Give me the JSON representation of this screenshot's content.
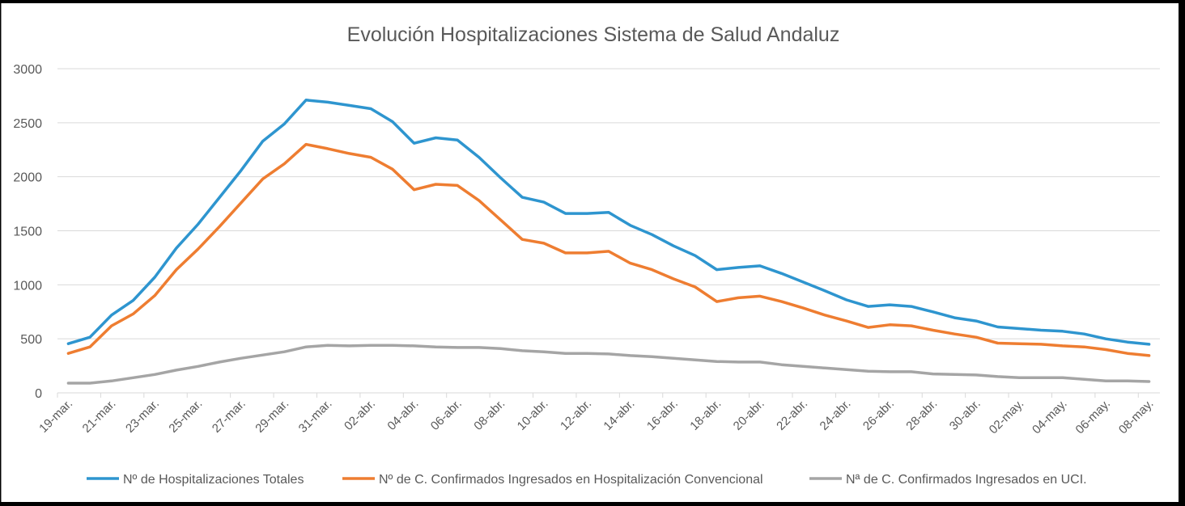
{
  "chart_data": {
    "type": "line",
    "title": "Evolución Hospitalizaciones Sistema de Salud Andaluz",
    "xlabel": "",
    "ylabel": "",
    "ylim": [
      0,
      3000
    ],
    "yticks": [
      0,
      500,
      1000,
      1500,
      2000,
      2500,
      3000
    ],
    "grid": true,
    "legend_position": "bottom",
    "x": [
      "19-mar.",
      "20-mar.",
      "21-mar.",
      "22-mar.",
      "23-mar.",
      "24-mar.",
      "25-mar.",
      "26-mar.",
      "27-mar.",
      "28-mar.",
      "29-mar.",
      "30-mar.",
      "31-mar.",
      "01-abr.",
      "02-abr.",
      "03-abr.",
      "04-abr.",
      "05-abr.",
      "06-abr.",
      "07-abr.",
      "08-abr.",
      "09-abr.",
      "10-abr.",
      "11-abr.",
      "12-abr.",
      "13-abr.",
      "14-abr.",
      "15-abr.",
      "16-abr.",
      "17-abr.",
      "18-abr.",
      "19-abr.",
      "20-abr.",
      "21-abr.",
      "22-abr.",
      "23-abr.",
      "24-abr.",
      "25-abr.",
      "26-abr.",
      "27-abr.",
      "28-abr.",
      "29-abr.",
      "30-abr.",
      "01-may.",
      "02-may.",
      "03-may.",
      "04-may.",
      "05-may.",
      "06-may.",
      "07-may.",
      "08-may."
    ],
    "xtick_labels": [
      "19-mar.",
      "21-mar.",
      "23-mar.",
      "25-mar.",
      "27-mar.",
      "29-mar.",
      "31-mar.",
      "02-abr.",
      "04-abr.",
      "06-abr.",
      "08-abr.",
      "10-abr.",
      "12-abr.",
      "14-abr.",
      "16-abr.",
      "18-abr.",
      "20-abr.",
      "22-abr.",
      "24-abr.",
      "26-abr.",
      "28-abr.",
      "30-abr.",
      "02-may.",
      "04-may.",
      "06-may.",
      "08-may."
    ],
    "series": [
      {
        "name": "Nº de Hospitalizaciones Totales",
        "color": "#2e95cf",
        "values": [
          455,
          515,
          720,
          855,
          1070,
          1340,
          1560,
          1810,
          2060,
          2330,
          2490,
          2710,
          2690,
          2660,
          2630,
          2510,
          2310,
          2360,
          2340,
          2180,
          1990,
          1810,
          1765,
          1660,
          1660,
          1670,
          1550,
          1465,
          1360,
          1270,
          1140,
          1160,
          1175,
          1105,
          1025,
          945,
          860,
          800,
          815,
          800,
          750,
          695,
          665,
          610,
          595,
          580,
          570,
          545,
          500,
          470,
          450
        ]
      },
      {
        "name": "Nº de C. Confirmados Ingresados en Hospitalización Convencional",
        "color": "#ee7d31",
        "values": [
          365,
          425,
          620,
          730,
          900,
          1140,
          1330,
          1540,
          1760,
          1980,
          2120,
          2300,
          2260,
          2215,
          2180,
          2070,
          1880,
          1930,
          1920,
          1780,
          1600,
          1420,
          1385,
          1295,
          1295,
          1310,
          1200,
          1140,
          1055,
          980,
          845,
          880,
          895,
          845,
          785,
          720,
          665,
          605,
          630,
          620,
          580,
          545,
          515,
          460,
          455,
          450,
          435,
          425,
          400,
          365,
          345
        ]
      },
      {
        "name": "Nª de C. Confirmados Ingresados en UCI.",
        "color": "#a5a5a5",
        "values": [
          90,
          90,
          110,
          140,
          170,
          210,
          245,
          285,
          320,
          350,
          380,
          425,
          440,
          435,
          440,
          440,
          435,
          425,
          420,
          420,
          410,
          390,
          380,
          365,
          365,
          360,
          345,
          335,
          320,
          305,
          290,
          285,
          285,
          260,
          245,
          230,
          215,
          200,
          195,
          195,
          175,
          170,
          165,
          150,
          140,
          140,
          140,
          125,
          110,
          110,
          105
        ]
      }
    ]
  }
}
